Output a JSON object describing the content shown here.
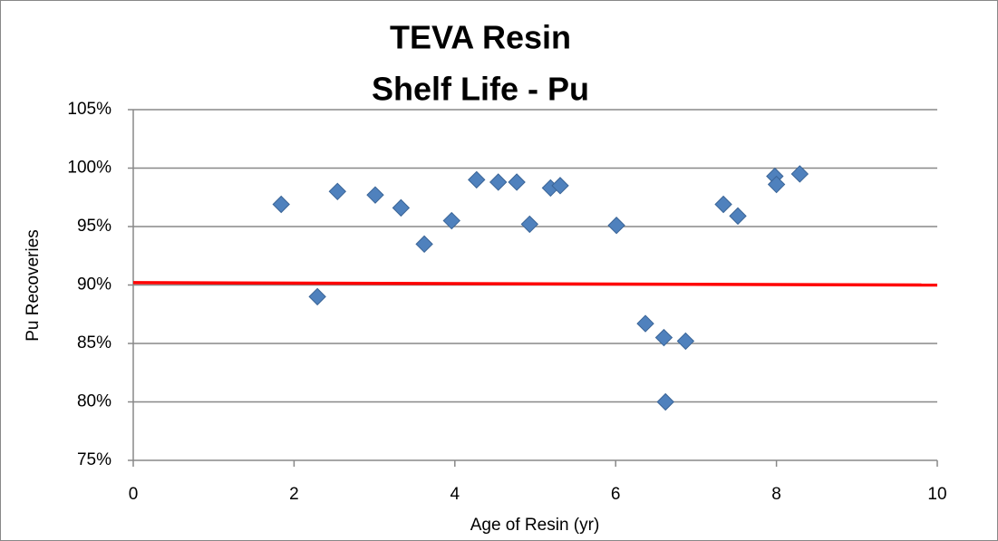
{
  "chart_data": {
    "type": "scatter",
    "title": [
      "TEVA Resin",
      "Shelf Life - Pu"
    ],
    "x_label": "Age of Resin (yr)",
    "y_label": "Pu Recoveries",
    "x": [
      1.84,
      2.29,
      2.54,
      3.01,
      3.33,
      3.62,
      3.96,
      4.27,
      4.54,
      4.77,
      4.93,
      5.19,
      5.31,
      6.01,
      6.37,
      6.6,
      6.62,
      6.87,
      7.34,
      7.52,
      7.98,
      8.0,
      8.29
    ],
    "values": [
      96.9,
      89.0,
      98.0,
      97.7,
      96.6,
      93.5,
      95.5,
      99.0,
      98.8,
      98.8,
      95.2,
      98.3,
      98.5,
      95.1,
      86.7,
      85.5,
      80.0,
      85.2,
      96.9,
      95.9,
      99.3,
      98.6,
      99.5
    ],
    "color": "#4f81bd",
    "reference_line": {
      "x": [
        0,
        10
      ],
      "values": [
        90.2,
        90.0
      ],
      "color": "#ff0000"
    },
    "xlim": [
      0,
      10
    ],
    "xticks": [
      0,
      2,
      4,
      6,
      8,
      10
    ],
    "ylim": [
      75,
      105
    ],
    "yticks": [
      {
        "value": 75,
        "label": "75%"
      },
      {
        "value": 80,
        "label": "80%"
      },
      {
        "value": 85,
        "label": "85%"
      },
      {
        "value": 90,
        "label": "90%"
      },
      {
        "value": 95,
        "label": "95%"
      },
      {
        "value": 100,
        "label": "100%"
      },
      {
        "value": 105,
        "label": "105%"
      }
    ],
    "grid": true
  }
}
